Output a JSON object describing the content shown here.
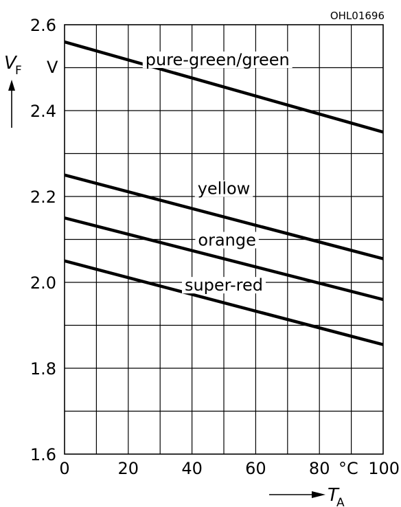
{
  "figure_code": "OHL01696",
  "chart_data": {
    "type": "line",
    "title": "",
    "xlabel": "T",
    "xlabel_sub": "A",
    "x_unit": "°C",
    "ylabel": "V",
    "ylabel_sub": "F",
    "y_unit": "V",
    "xlim": [
      0,
      100
    ],
    "ylim": [
      1.6,
      2.6
    ],
    "x_ticks": [
      "0",
      "20",
      "40",
      "60",
      "80",
      "100"
    ],
    "y_ticks": [
      "1.6",
      "1.8",
      "2.0",
      "2.2",
      "2.4",
      "2.6"
    ],
    "grid": true,
    "series": [
      {
        "name": "pure-green/green",
        "x": [
          0,
          100
        ],
        "y": [
          2.56,
          2.35
        ]
      },
      {
        "name": "yellow",
        "x": [
          0,
          100
        ],
        "y": [
          2.25,
          2.055
        ]
      },
      {
        "name": "orange",
        "x": [
          0,
          100
        ],
        "y": [
          2.15,
          1.96
        ]
      },
      {
        "name": "super-red",
        "x": [
          0,
          100
        ],
        "y": [
          2.05,
          1.855
        ]
      }
    ]
  }
}
